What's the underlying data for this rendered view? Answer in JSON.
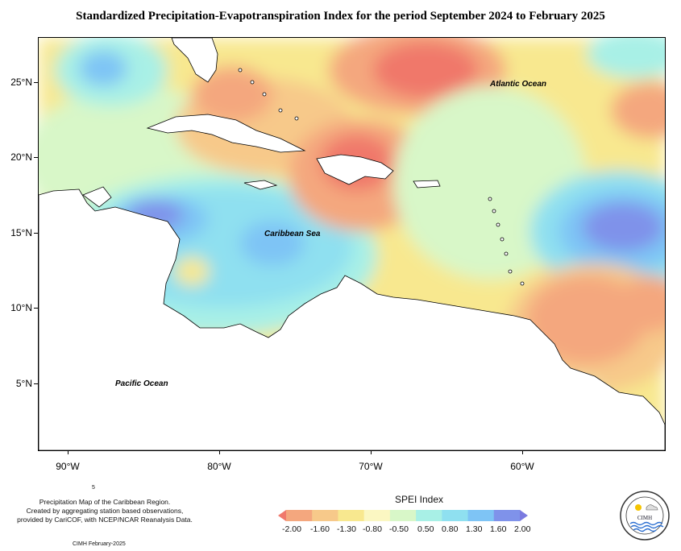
{
  "title": "Standardized Precipitation-Evapotranspiration Index for the period September 2024 to February 2025",
  "axes": {
    "y_ticks": [
      "25°N",
      "20°N",
      "15°N",
      "10°N",
      "5°N"
    ],
    "x_ticks": [
      "90°W",
      "80°W",
      "70°W",
      "60°W"
    ]
  },
  "map_labels": {
    "atlantic": "Atlantic Ocean",
    "caribbean": "Caribbean Sea",
    "pacific": "Pacific Ocean"
  },
  "notes": {
    "line1": "Precipitation Map of the Caribbean Region.",
    "line2": "Created by aggregating station based observations,",
    "line3": "provided by CariCOF, with NCEP/NCAR Reanalysis Data.",
    "tiny": "5",
    "footer": "CIMH February-2025"
  },
  "legend": {
    "title": "SPEI Index",
    "labels": [
      "-2.00",
      "-1.60",
      "-1.30",
      "-0.80",
      "-0.50",
      "0.50",
      "0.80",
      "1.30",
      "1.60",
      "2.00"
    ],
    "colors": [
      "#f0786b",
      "#f4a77e",
      "#f7c98a",
      "#f8e88f",
      "#fbf7c2",
      "#d8f7c8",
      "#a8f0e6",
      "#8fe0f0",
      "#7ec4f5",
      "#7f92ea",
      "#7a7ae0"
    ]
  },
  "logo": {
    "text": "CIMH",
    "icon": "cimh-logo-icon"
  }
}
